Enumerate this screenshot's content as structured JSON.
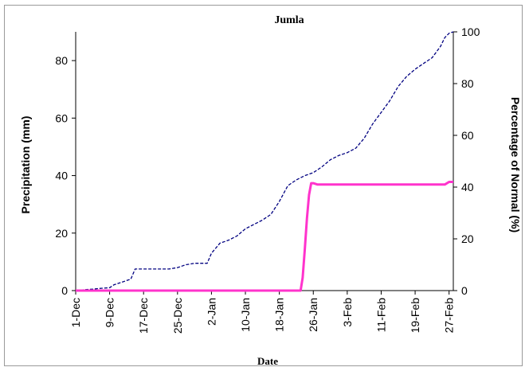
{
  "chart_data": {
    "type": "line",
    "title": "Jumla",
    "xlabel": "Date",
    "ylabel_left": "Precipitation (mm)",
    "ylabel_right": "Percentage of Normal (%)",
    "ylim_left": [
      0,
      90
    ],
    "yticks_left": [
      0,
      20,
      40,
      60,
      80
    ],
    "ylim_right": [
      0,
      100
    ],
    "yticks_right": [
      0,
      20,
      40,
      60,
      80,
      100
    ],
    "xticks": [
      "1-Dec",
      "9-Dec",
      "17-Dec",
      "25-Dec",
      "2-Jan",
      "10-Jan",
      "18-Jan",
      "26-Jan",
      "3-Feb",
      "11-Feb",
      "19-Feb",
      "27-Feb"
    ],
    "grid": false,
    "legend": "none",
    "series": [
      {
        "axis": "left",
        "color": "#000080",
        "style": "dashed",
        "points": [
          [
            "1-Dec",
            0
          ],
          [
            "3-Dec",
            0.3
          ],
          [
            "5-Dec",
            0.5
          ],
          [
            "7-Dec",
            0.8
          ],
          [
            "9-Dec",
            1
          ],
          [
            "10-Dec",
            2
          ],
          [
            "12-Dec",
            3
          ],
          [
            "14-Dec",
            4
          ],
          [
            "15-Dec",
            7.5
          ],
          [
            "17-Dec",
            7.5
          ],
          [
            "20-Dec",
            7.5
          ],
          [
            "23-Dec",
            7.5
          ],
          [
            "25-Dec",
            8
          ],
          [
            "27-Dec",
            9
          ],
          [
            "29-Dec",
            9.5
          ],
          [
            "1-Jan",
            9.5
          ],
          [
            "2-Jan",
            13
          ],
          [
            "4-Jan",
            16.5
          ],
          [
            "6-Jan",
            17.5
          ],
          [
            "8-Jan",
            19
          ],
          [
            "10-Jan",
            21.5
          ],
          [
            "12-Jan",
            23
          ],
          [
            "14-Jan",
            24.5
          ],
          [
            "16-Jan",
            26.5
          ],
          [
            "18-Jan",
            31
          ],
          [
            "20-Jan",
            36.5
          ],
          [
            "22-Jan",
            38.5
          ],
          [
            "24-Jan",
            40
          ],
          [
            "26-Jan",
            41
          ],
          [
            "28-Jan",
            43
          ],
          [
            "30-Jan",
            45.5
          ],
          [
            "1-Feb",
            47
          ],
          [
            "3-Feb",
            48
          ],
          [
            "5-Feb",
            49.5
          ],
          [
            "7-Feb",
            53
          ],
          [
            "9-Feb",
            58
          ],
          [
            "11-Feb",
            62
          ],
          [
            "13-Feb",
            66
          ],
          [
            "15-Feb",
            71
          ],
          [
            "17-Feb",
            74.5
          ],
          [
            "19-Feb",
            77
          ],
          [
            "21-Feb",
            79
          ],
          [
            "23-Feb",
            81
          ],
          [
            "25-Feb",
            85
          ],
          [
            "26-Feb",
            88
          ],
          [
            "27-Feb",
            89.5
          ],
          [
            "28-Feb",
            90
          ]
        ]
      },
      {
        "axis": "right",
        "color": "#ff33cc",
        "style": "solid",
        "points": [
          [
            "1-Dec",
            0
          ],
          [
            "10-Dec",
            0
          ],
          [
            "20-Dec",
            0
          ],
          [
            "1-Jan",
            0
          ],
          [
            "10-Jan",
            0
          ],
          [
            "20-Jan",
            0
          ],
          [
            "23-Jan",
            0
          ],
          [
            "23.5-Jan",
            5
          ],
          [
            "24-Jan",
            16
          ],
          [
            "24.5-Jan",
            28
          ],
          [
            "25-Jan",
            37
          ],
          [
            "25.5-Jan",
            41.5
          ],
          [
            "26-Jan",
            41.5
          ],
          [
            "27-Jan",
            41
          ],
          [
            "1-Feb",
            41
          ],
          [
            "10-Feb",
            41
          ],
          [
            "20-Feb",
            41
          ],
          [
            "26-Feb",
            41
          ],
          [
            "27-Feb",
            42
          ],
          [
            "28-Feb",
            42
          ]
        ]
      }
    ]
  }
}
